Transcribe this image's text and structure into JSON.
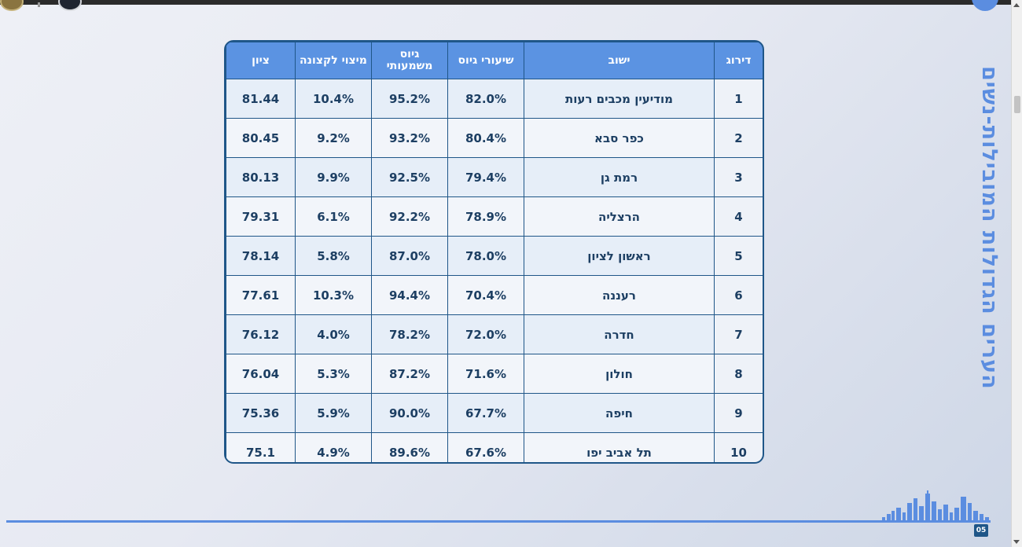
{
  "title": "הערים הגדולות המובילות-נשים",
  "page_number": "05",
  "colors": {
    "accent": "#5b8de0",
    "header_bg": "#5b93e2",
    "border": "#1f5688",
    "text": "#1d3f63"
  },
  "table": {
    "headers": {
      "rank": "דירוג",
      "city": "ישוב",
      "recruit_rate": "שיעורי גיוס",
      "meaningful_recruit": "גיוס משמעותי",
      "officer_potential": "מיצוי לקצונה",
      "score": "ציון"
    },
    "rows": [
      {
        "rank": "1",
        "city": "מודיעין מכבים רעות",
        "recruit_rate": "82.0%",
        "meaningful_recruit": "95.2%",
        "officer_potential": "10.4%",
        "score": "81.44"
      },
      {
        "rank": "2",
        "city": "כפר סבא",
        "recruit_rate": "80.4%",
        "meaningful_recruit": "93.2%",
        "officer_potential": "9.2%",
        "score": "80.45"
      },
      {
        "rank": "3",
        "city": "רמת גן",
        "recruit_rate": "79.4%",
        "meaningful_recruit": "92.5%",
        "officer_potential": "9.9%",
        "score": "80.13"
      },
      {
        "rank": "4",
        "city": "הרצליה",
        "recruit_rate": "78.9%",
        "meaningful_recruit": "92.2%",
        "officer_potential": "6.1%",
        "score": "79.31"
      },
      {
        "rank": "5",
        "city": "ראשון לציון",
        "recruit_rate": "78.0%",
        "meaningful_recruit": "87.0%",
        "officer_potential": "5.8%",
        "score": "78.14"
      },
      {
        "rank": "6",
        "city": "רעננה",
        "recruit_rate": "70.4%",
        "meaningful_recruit": "94.4%",
        "officer_potential": "10.3%",
        "score": "77.61"
      },
      {
        "rank": "7",
        "city": "חדרה",
        "recruit_rate": "72.0%",
        "meaningful_recruit": "78.2%",
        "officer_potential": "4.0%",
        "score": "76.12"
      },
      {
        "rank": "8",
        "city": "חולון",
        "recruit_rate": "71.6%",
        "meaningful_recruit": "87.2%",
        "officer_potential": "5.3%",
        "score": "76.04"
      },
      {
        "rank": "9",
        "city": "חיפה",
        "recruit_rate": "67.7%",
        "meaningful_recruit": "90.0%",
        "officer_potential": "5.9%",
        "score": "75.36"
      },
      {
        "rank": "10",
        "city": "תל אביב יפו",
        "recruit_rate": "67.6%",
        "meaningful_recruit": "89.6%",
        "officer_potential": "4.9%",
        "score": "75.1"
      }
    ]
  }
}
